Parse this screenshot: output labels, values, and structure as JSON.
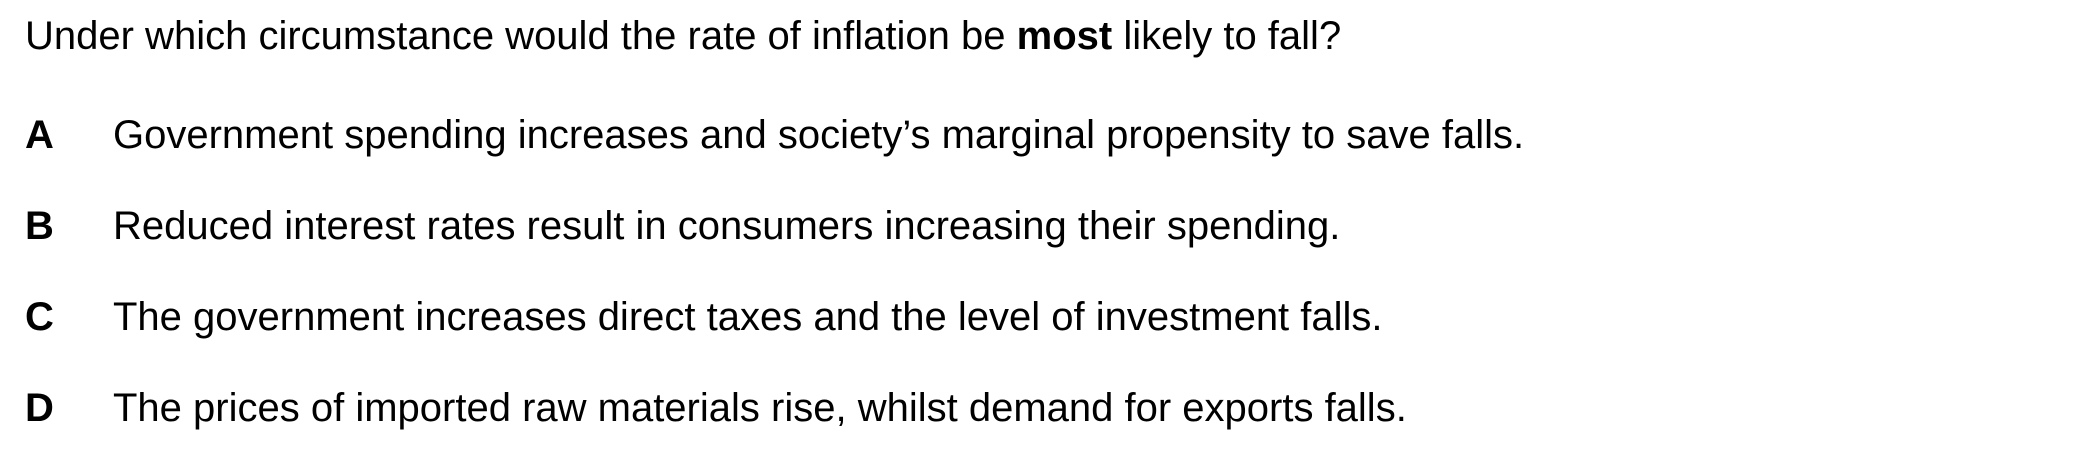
{
  "question": {
    "before": "Under which circumstance would the rate of inflation be ",
    "emphasis": "most",
    "after": " likely to fall?"
  },
  "options": [
    {
      "letter": "A",
      "text": "Government spending increases and society’s marginal propensity to save falls."
    },
    {
      "letter": "B",
      "text": "Reduced interest rates result in consumers increasing their spending."
    },
    {
      "letter": "C",
      "text": "The government increases direct taxes and the level of investment falls."
    },
    {
      "letter": "D",
      "text": "The prices of imported raw materials rise, whilst demand for exports falls."
    }
  ]
}
